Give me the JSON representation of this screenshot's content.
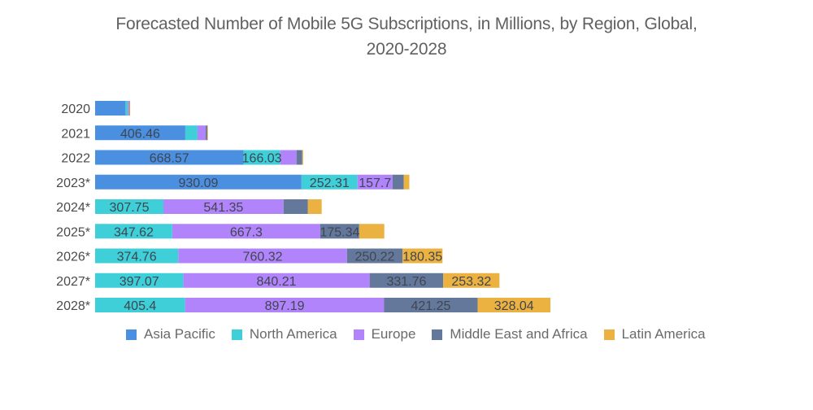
{
  "chart_data": {
    "type": "bar",
    "orientation": "horizontal",
    "stacked": true,
    "title": "Forecasted Number of Mobile 5G Subscriptions, in Millions, by Region, Global, 2020-2028",
    "title_lines": [
      "Forecasted Number of Mobile 5G Subscriptions, in Millions, by Region, Global,",
      "2020-2028"
    ],
    "xlabel": "",
    "ylabel": "",
    "units": "Millions",
    "grid": false,
    "x_axis_visible": false,
    "legend_position": "bottom",
    "xlim": [
      0,
      2100
    ],
    "categories": [
      "2020",
      "2021",
      "2022",
      "2023*",
      "2024*",
      "2025*",
      "2026*",
      "2027*",
      "2028*"
    ],
    "series": [
      {
        "name": "Asia Pacific",
        "color": "#4a8fe0",
        "values": [
          137,
          406.46,
          668.57,
          930.09,
          0,
          0,
          0,
          0,
          0
        ],
        "labels": [
          null,
          "406.46",
          "668.57",
          "930.09",
          null,
          null,
          null,
          null,
          null
        ]
      },
      {
        "name": "North America",
        "color": "#3ecfd8",
        "values": [
          10,
          55,
          166.03,
          252.31,
          307.75,
          347.62,
          374.76,
          397.07,
          405.4
        ],
        "labels": [
          null,
          null,
          "166.03",
          "252.31",
          "307.75",
          "347.62",
          "374.76",
          "397.07",
          "405.4"
        ]
      },
      {
        "name": "Europe",
        "color": "#b284fb",
        "values": [
          6,
          37,
          73,
          157.7,
          541.35,
          667.3,
          760.32,
          840.21,
          897.19
        ],
        "labels": [
          null,
          null,
          null,
          "157.7",
          "541.35",
          "667.3",
          "760.32",
          "840.21",
          "897.19"
        ]
      },
      {
        "name": "Middle East and Africa",
        "color": "#64789b",
        "values": [
          2,
          7,
          26,
          51,
          110,
          175.34,
          250.22,
          331.76,
          421.25
        ],
        "labels": [
          null,
          null,
          null,
          null,
          null,
          "175.34",
          "250.22",
          "331.76",
          "421.25"
        ]
      },
      {
        "name": "Latin America",
        "color": "#ebb241",
        "values": [
          1,
          3,
          4,
          25,
          62,
          113,
          180.35,
          253.32,
          328.04
        ],
        "labels": [
          null,
          null,
          null,
          null,
          null,
          null,
          "180.35",
          "253.32",
          "328.04"
        ]
      }
    ]
  }
}
